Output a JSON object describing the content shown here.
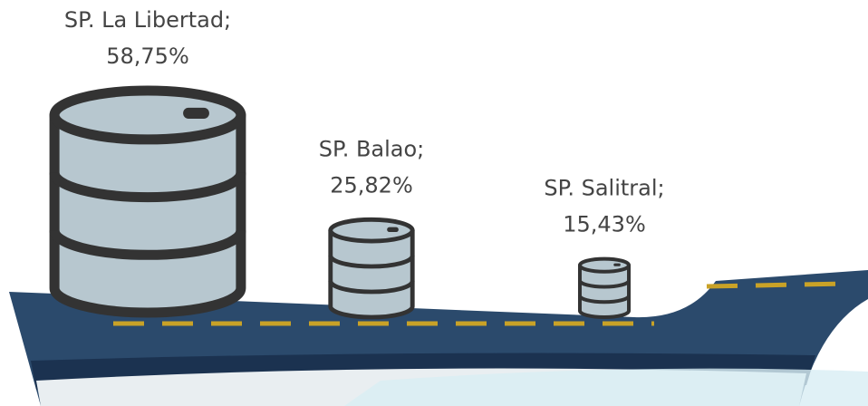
{
  "chart_data": {
    "type": "pictorial",
    "categories": [
      "SP. La Libertad;",
      "SP. Balao;",
      "SP. Salitral;"
    ],
    "values": [
      58.75,
      25.82,
      15.43
    ],
    "value_labels": [
      "58,75%",
      "25,82%",
      "15,43%"
    ],
    "color": "#b7c7cf"
  }
}
